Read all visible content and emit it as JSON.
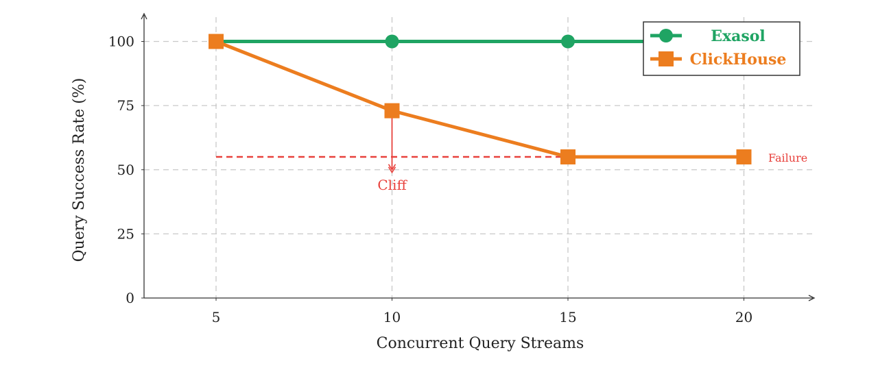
{
  "chart_data": {
    "type": "line",
    "title": "",
    "xlabel": "Concurrent Query Streams",
    "ylabel": "Query Success Rate (%)",
    "x": [
      5,
      10,
      15,
      20
    ],
    "xticks": [
      "5",
      "10",
      "15",
      "20"
    ],
    "yticks": [
      "0",
      "25",
      "50",
      "75",
      "100"
    ],
    "xlim": [
      3,
      22
    ],
    "ylim": [
      0,
      110
    ],
    "grid": true,
    "legend_position": "top-right",
    "series": [
      {
        "name": "Exasol",
        "values": [
          100,
          100,
          100,
          100
        ],
        "color": "#1fa463",
        "marker": "circle"
      },
      {
        "name": "ClickHouse",
        "values": [
          100,
          73,
          55,
          55
        ],
        "color": "#ec7d1f",
        "marker": "square"
      }
    ],
    "annotations": [
      {
        "type": "hline",
        "y": 55,
        "x_range": [
          5,
          20
        ],
        "label": "Failure",
        "color": "#e8413c",
        "style": "dashed"
      },
      {
        "type": "arrow",
        "x": 10,
        "from_y": 73,
        "to_y": 50,
        "label": "Cliff",
        "color": "#e8413c"
      }
    ]
  }
}
